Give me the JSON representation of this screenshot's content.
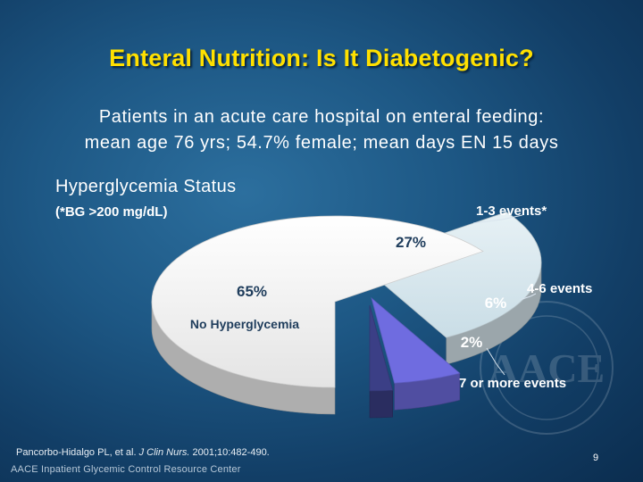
{
  "slide": {
    "title": "Enteral Nutrition: Is It Diabetogenic?",
    "subtitle_line1": "Patients in an acute care hospital on enteral feeding:",
    "subtitle_line2": "mean age 76 yrs; 54.7% female; mean days EN 15 days",
    "section_title": "Hyperglycemia Status",
    "section_note": "(*BG >200 mg/dL)",
    "citation_authors": "Pancorbo-Hidalgo PL, et al. ",
    "citation_journal": "J Clin Nurs.",
    "citation_rest": " 2001;10:482-490.",
    "footer_org": "AACE Inpatient Glycemic Control Resource Center",
    "page_number": "9",
    "watermark_text": "AACE"
  },
  "chart_data": {
    "type": "pie",
    "title": "",
    "slices": [
      {
        "name": "No Hyperglycemia",
        "value": 65,
        "value_label": "65%",
        "color": "#f2f2f2"
      },
      {
        "name": "1-3 events*",
        "value": 27,
        "value_label": "27%",
        "color": "#d7e7ee"
      },
      {
        "name": "4-6 events",
        "value": 6,
        "value_label": "6%",
        "color": "#6f6ce0"
      },
      {
        "name": "7 or more events",
        "value": 2,
        "value_label": "2%",
        "color": "#3b3f86"
      }
    ],
    "legend": "none",
    "labels": "callouts"
  }
}
